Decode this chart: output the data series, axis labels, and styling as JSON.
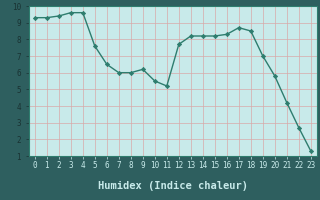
{
  "x": [
    0,
    1,
    2,
    3,
    4,
    5,
    6,
    7,
    8,
    9,
    10,
    11,
    12,
    13,
    14,
    15,
    16,
    17,
    18,
    19,
    20,
    21,
    22,
    23
  ],
  "y": [
    9.3,
    9.3,
    9.4,
    9.6,
    9.6,
    7.6,
    6.5,
    6.0,
    6.0,
    6.2,
    5.5,
    5.2,
    7.7,
    8.2,
    8.2,
    8.2,
    8.3,
    8.7,
    8.5,
    7.0,
    5.8,
    4.2,
    2.7,
    1.3
  ],
  "line_color": "#2e7d6e",
  "marker": "D",
  "marker_size": 2.2,
  "bg_color": "#c8eaea",
  "grid_color": "#e8f8f8",
  "axis_bg": "#c8eaea",
  "spine_color": "#2e7d6e",
  "bottom_bar_color": "#2e5f5f",
  "xlabel": "Humidex (Indice chaleur)",
  "xlim": [
    -0.5,
    23.5
  ],
  "ylim": [
    1,
    10
  ],
  "yticks": [
    1,
    2,
    3,
    4,
    5,
    6,
    7,
    8,
    9,
    10
  ],
  "xticks": [
    0,
    1,
    2,
    3,
    4,
    5,
    6,
    7,
    8,
    9,
    10,
    11,
    12,
    13,
    14,
    15,
    16,
    17,
    18,
    19,
    20,
    21,
    22,
    23
  ],
  "tick_label_fontsize": 5.5,
  "xlabel_fontsize": 7.5,
  "line_width": 1.0
}
